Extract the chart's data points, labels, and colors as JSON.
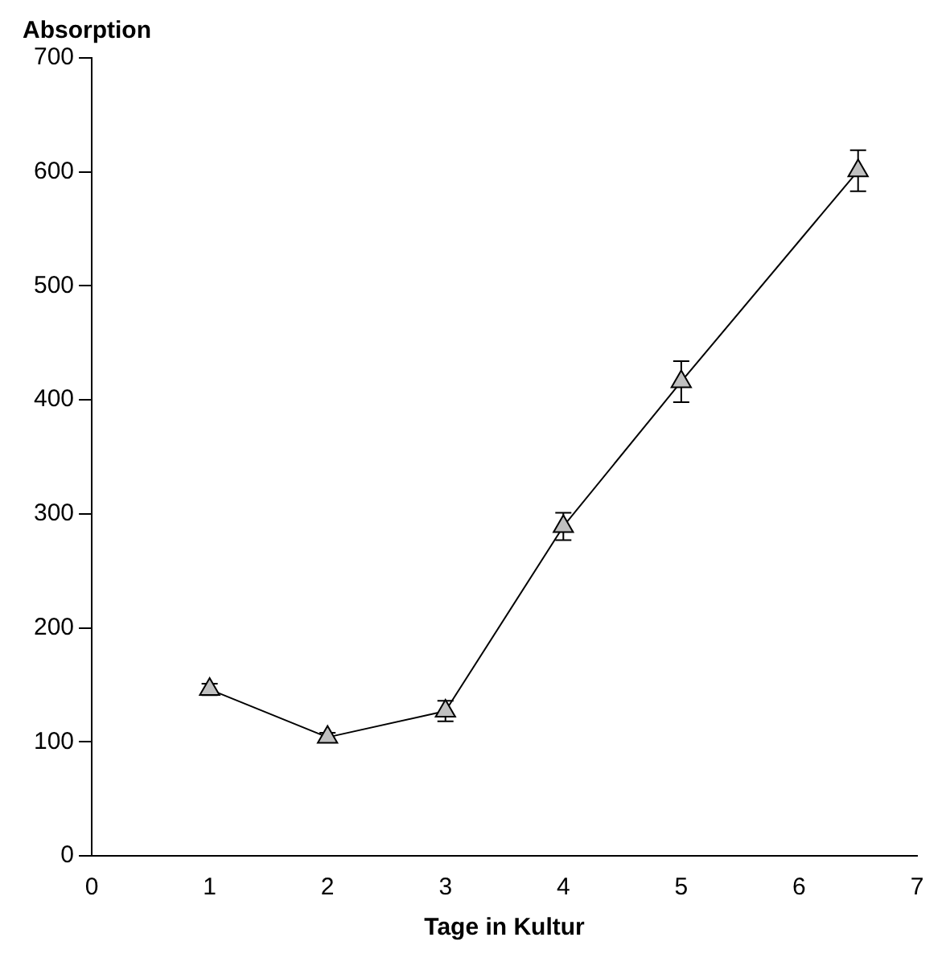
{
  "chart_data": {
    "type": "line",
    "xlabel": "Tage in Kultur",
    "ylabel": "Absorption",
    "x": [
      1,
      2,
      3,
      4,
      5,
      6.5
    ],
    "series": [
      {
        "color": "#c0c0c0",
        "values": [
          146,
          104,
          127,
          289,
          416,
          601
        ],
        "errors": [
          5,
          4,
          9,
          12,
          18,
          18
        ]
      }
    ],
    "xlim": [
      0,
      7
    ],
    "xticks": [
      0,
      1,
      2,
      3,
      4,
      5,
      6,
      7
    ],
    "ylim": [
      0,
      700
    ],
    "yticks": [
      0,
      100,
      200,
      300,
      400,
      500,
      600,
      700
    ],
    "grid": false,
    "legend": false,
    "marker": "triangle",
    "line_style": "solid"
  }
}
